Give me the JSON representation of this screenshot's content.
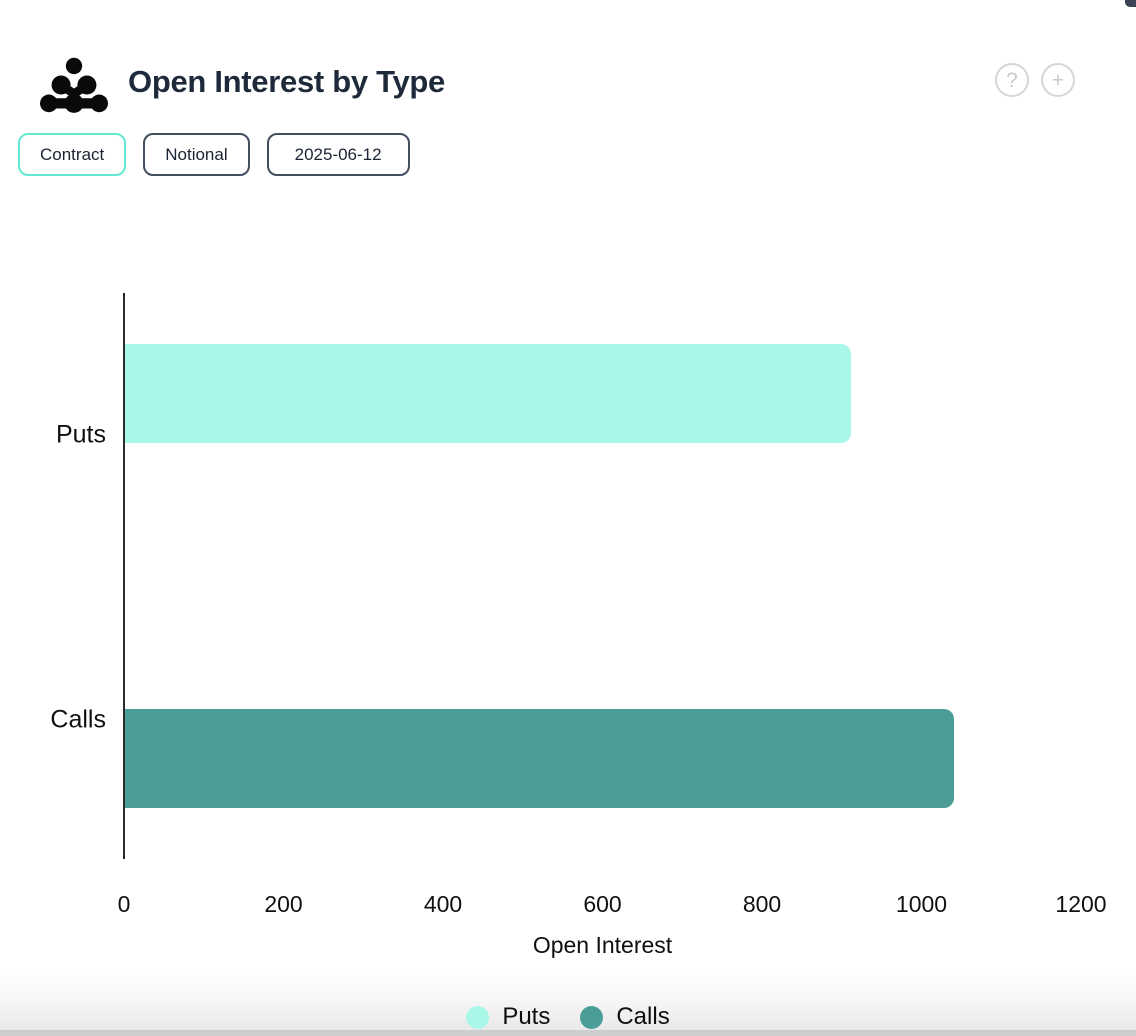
{
  "header": {
    "title": "Open Interest by Type",
    "logo": "dot-cluster-logo",
    "help_icon": "?",
    "add_icon": "+"
  },
  "toolbar": {
    "buttons": [
      {
        "label": "Contract",
        "selected": true
      },
      {
        "label": "Notional",
        "selected": false
      },
      {
        "label": "2025-06-12",
        "selected": false
      }
    ]
  },
  "chart_data": {
    "type": "bar",
    "orientation": "horizontal",
    "title": "Open Interest by Type",
    "categories": [
      "Puts",
      "Calls"
    ],
    "values": [
      910,
      1040
    ],
    "colors": [
      "#a9f7e9",
      "#4a9e97"
    ],
    "xlabel": "Open Interest",
    "ylabel": "",
    "xlim": [
      0,
      1200
    ],
    "xticks": [
      0,
      200,
      400,
      600,
      800,
      1000,
      1200
    ],
    "grid": false,
    "legend": {
      "position": "bottom",
      "items": [
        {
          "label": "Puts",
          "color": "#a9f7e9"
        },
        {
          "label": "Calls",
          "color": "#4a9e97"
        }
      ]
    }
  }
}
